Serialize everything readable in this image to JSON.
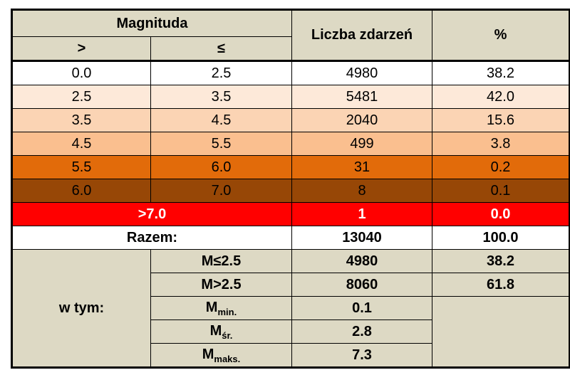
{
  "header": {
    "magnitude": "Magnituda",
    "gt": ">",
    "le": "≤",
    "count": "Liczba zdarzeń",
    "percent": "%"
  },
  "rows": [
    [
      "0.0",
      "2.5",
      "4980",
      "38.2"
    ],
    [
      "2.5",
      "3.5",
      "5481",
      "42.0"
    ],
    [
      "3.5",
      "4.5",
      "2040",
      "15.6"
    ],
    [
      "4.5",
      "5.5",
      "499",
      "3.8"
    ],
    [
      "5.5",
      "6.0",
      "31",
      "0.2"
    ],
    [
      "6.0",
      "7.0",
      "8",
      "0.1"
    ]
  ],
  "above": {
    "label": ">7.0",
    "count": "1",
    "percent": "0.0"
  },
  "total": {
    "label": "Razem:",
    "count": "13040",
    "percent": "100.0"
  },
  "including": {
    "label": "w tym:",
    "rows": [
      {
        "label": "M≤2.5",
        "count": "4980",
        "percent": "38.2"
      },
      {
        "label": "M>2.5",
        "count": "8060",
        "percent": "61.8"
      },
      {
        "base": "M",
        "sub": "min.",
        "count": "0.1"
      },
      {
        "base": "M",
        "sub": "śr.",
        "count": "2.8"
      },
      {
        "base": "M",
        "sub": "maks.",
        "count": "7.3"
      }
    ]
  }
}
